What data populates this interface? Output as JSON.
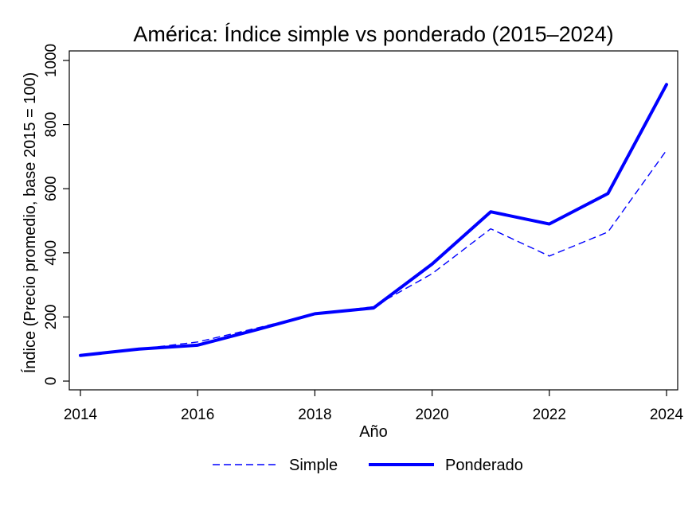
{
  "chart_data": {
    "type": "line",
    "title": "América: Índice simple vs ponderado (2015–2024)",
    "xlabel": "Año",
    "ylabel": "Índice (Precio promedio, base 2015 = 100)",
    "x": [
      2014,
      2015,
      2016,
      2017,
      2018,
      2019,
      2020,
      2021,
      2022,
      2023,
      2024
    ],
    "xlim": [
      2014,
      2024
    ],
    "ylim": [
      0,
      1000
    ],
    "xticks": [
      "2014",
      "2016",
      "2018",
      "2020",
      "2022",
      "2024"
    ],
    "yticks": [
      "0",
      "200",
      "400",
      "600",
      "800",
      "1000"
    ],
    "grid": false,
    "legend_position": "bottom",
    "series": [
      {
        "name": "Simple",
        "style": "dashed",
        "color": "#0000ff",
        "values": [
          80,
          100,
          122,
          165,
          210,
          232,
          335,
          475,
          390,
          465,
          720
        ]
      },
      {
        "name": "Ponderado",
        "style": "solid",
        "color": "#0000ff",
        "values": [
          80,
          100,
          112,
          160,
          210,
          228,
          365,
          528,
          490,
          585,
          925
        ]
      }
    ]
  }
}
